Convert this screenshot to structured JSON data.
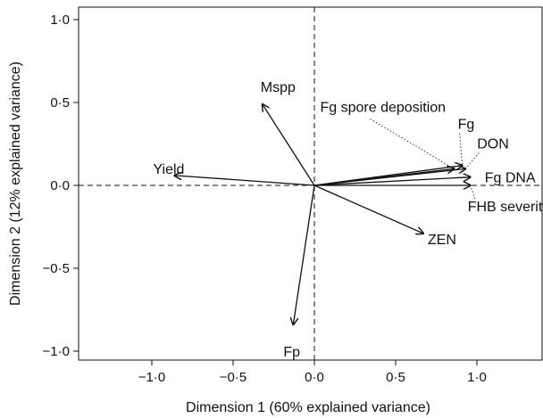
{
  "chart_data": {
    "type": "scatter",
    "subtype": "biplot-vectors",
    "xlabel": "Dimension 1 (60% explained variance)",
    "ylabel": "Dimension 2 (12% explained variance)",
    "xlim": [
      -1.4,
      1.4
    ],
    "ylim": [
      -1.05,
      1.05
    ],
    "xticks": [
      -1.0,
      -0.5,
      0.0,
      0.5,
      1.0
    ],
    "xtick_labels": [
      "−1·0",
      "−0·5",
      "0·0",
      "0·5",
      "1·0"
    ],
    "yticks": [
      -1.0,
      -0.5,
      0.0,
      0.5,
      1.0
    ],
    "ytick_labels": [
      "−1·0",
      "−0·5",
      "0·0",
      "0·5",
      "1·0"
    ],
    "grid": false,
    "reference_lines": [
      "x = 0 (dashed)",
      "y = 0 (dashed)"
    ],
    "vectors": [
      {
        "name": "Yield",
        "x": -0.86,
        "y": 0.06
      },
      {
        "name": "Mspp",
        "x": -0.32,
        "y": 0.49
      },
      {
        "name": "Fp",
        "x": -0.13,
        "y": -0.84
      },
      {
        "name": "ZEN",
        "x": 0.67,
        "y": -0.29
      },
      {
        "name": "Fg spore deposition",
        "x": 0.86,
        "y": 0.1
      },
      {
        "name": "Fg",
        "x": 0.91,
        "y": 0.12
      },
      {
        "name": "DON",
        "x": 0.93,
        "y": 0.1
      },
      {
        "name": "Fg DNA",
        "x": 0.96,
        "y": 0.05
      },
      {
        "name": "FHB severity",
        "x": 0.96,
        "y": 0.0
      }
    ]
  }
}
